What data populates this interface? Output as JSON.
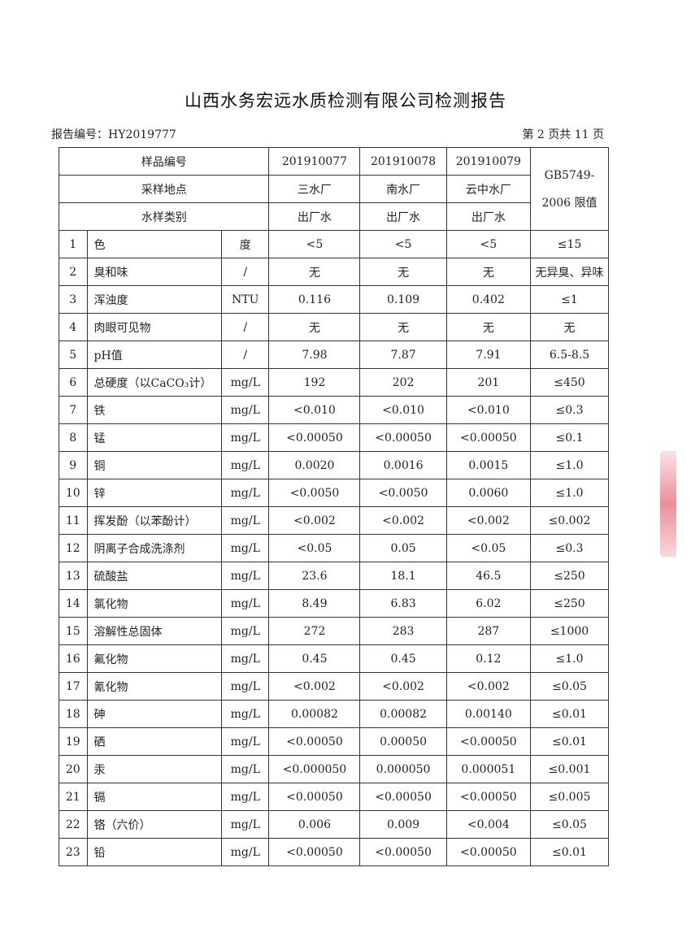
{
  "title": "山西水务宏远水质检测有限公司检测报告",
  "report_no": "报告编号：HY2019777",
  "page_info": "第 2 页共 11 页",
  "header": {
    "sample_no_label": "样品编号",
    "location_label": "采样地点",
    "type_label": "水样类别",
    "limit_label": "GB5749-2006 限值",
    "samples": [
      {
        "no": "201910077",
        "location": "三水厂",
        "type": "出厂水"
      },
      {
        "no": "201910078",
        "location": "南水厂",
        "type": "出厂水"
      },
      {
        "no": "201910079",
        "location": "云中水厂",
        "type": "出厂水"
      }
    ]
  },
  "rows": [
    {
      "no": "1",
      "name": "色",
      "unit": "度",
      "v": [
        "<5",
        "<5",
        "<5"
      ],
      "limit": "≤15"
    },
    {
      "no": "2",
      "name": "臭和味",
      "unit": "/",
      "v": [
        "无",
        "无",
        "无"
      ],
      "limit": "无异臭、异味"
    },
    {
      "no": "3",
      "name": "浑浊度",
      "unit": "NTU",
      "v": [
        "0.116",
        "0.109",
        "0.402"
      ],
      "limit": "≤1"
    },
    {
      "no": "4",
      "name": "肉眼可见物",
      "unit": "/",
      "v": [
        "无",
        "无",
        "无"
      ],
      "limit": "无"
    },
    {
      "no": "5",
      "name": "pH值",
      "unit": "/",
      "v": [
        "7.98",
        "7.87",
        "7.91"
      ],
      "limit": "6.5-8.5"
    },
    {
      "no": "6",
      "name": "总硬度（以CaCO₃计）",
      "unit": "mg/L",
      "v": [
        "192",
        "202",
        "201"
      ],
      "limit": "≤450"
    },
    {
      "no": "7",
      "name": "铁",
      "unit": "mg/L",
      "v": [
        "<0.010",
        "<0.010",
        "<0.010"
      ],
      "limit": "≤0.3"
    },
    {
      "no": "8",
      "name": "锰",
      "unit": "mg/L",
      "v": [
        "<0.00050",
        "<0.00050",
        "<0.00050"
      ],
      "limit": "≤0.1"
    },
    {
      "no": "9",
      "name": "铜",
      "unit": "mg/L",
      "v": [
        "0.0020",
        "0.0016",
        "0.0015"
      ],
      "limit": "≤1.0"
    },
    {
      "no": "10",
      "name": "锌",
      "unit": "mg/L",
      "v": [
        "<0.0050",
        "<0.0050",
        "0.0060"
      ],
      "limit": "≤1.0"
    },
    {
      "no": "11",
      "name": "挥发酚（以苯酚计）",
      "unit": "mg/L",
      "v": [
        "<0.002",
        "<0.002",
        "<0.002"
      ],
      "limit": "≤0.002"
    },
    {
      "no": "12",
      "name": "阴离子合成洗涤剂",
      "unit": "mg/L",
      "v": [
        "<0.05",
        "0.05",
        "<0.05"
      ],
      "limit": "≤0.3"
    },
    {
      "no": "13",
      "name": "硫酸盐",
      "unit": "mg/L",
      "v": [
        "23.6",
        "18.1",
        "46.5"
      ],
      "limit": "≤250"
    },
    {
      "no": "14",
      "name": "氯化物",
      "unit": "mg/L",
      "v": [
        "8.49",
        "6.83",
        "6.02"
      ],
      "limit": "≤250"
    },
    {
      "no": "15",
      "name": "溶解性总固体",
      "unit": "mg/L",
      "v": [
        "272",
        "283",
        "287"
      ],
      "limit": "≤1000"
    },
    {
      "no": "16",
      "name": "氟化物",
      "unit": "mg/L",
      "v": [
        "0.45",
        "0.45",
        "0.12"
      ],
      "limit": "≤1.0"
    },
    {
      "no": "17",
      "name": "氰化物",
      "unit": "mg/L",
      "v": [
        "<0.002",
        "<0.002",
        "<0.002"
      ],
      "limit": "≤0.05"
    },
    {
      "no": "18",
      "name": "砷",
      "unit": "mg/L",
      "v": [
        "0.00082",
        "0.00082",
        "0.00140"
      ],
      "limit": "≤0.01"
    },
    {
      "no": "19",
      "name": "硒",
      "unit": "mg/L",
      "v": [
        "<0.00050",
        "0.00050",
        "<0.00050"
      ],
      "limit": "≤0.01"
    },
    {
      "no": "20",
      "name": "汞",
      "unit": "mg/L",
      "v": [
        "<0.000050",
        "0.000050",
        "0.000051"
      ],
      "limit": "≤0.001"
    },
    {
      "no": "21",
      "name": "镉",
      "unit": "mg/L",
      "v": [
        "<0.00050",
        "<0.00050",
        "<0.00050"
      ],
      "limit": "≤0.005"
    },
    {
      "no": "22",
      "name": "铬（六价）",
      "unit": "mg/L",
      "v": [
        "0.006",
        "0.009",
        "<0.004"
      ],
      "limit": "≤0.05"
    },
    {
      "no": "23",
      "name": "铅",
      "unit": "mg/L",
      "v": [
        "<0.00050",
        "<0.00050",
        "<0.00050"
      ],
      "limit": "≤0.01"
    }
  ],
  "colors": {
    "stamp": "#dc3c50"
  }
}
